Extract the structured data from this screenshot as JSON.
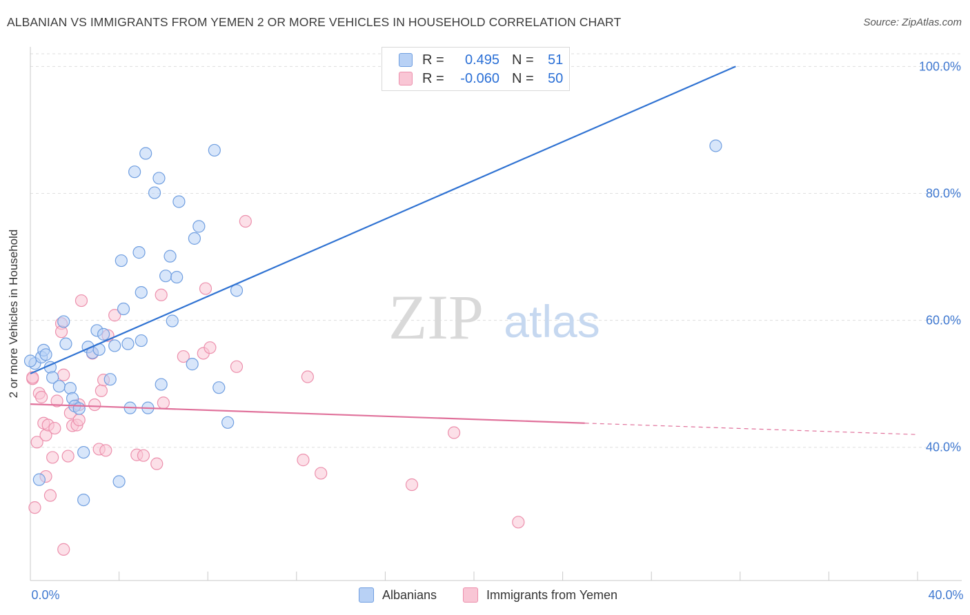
{
  "title": "ALBANIAN VS IMMIGRANTS FROM YEMEN 2 OR MORE VEHICLES IN HOUSEHOLD CORRELATION CHART",
  "source": "Source: ZipAtlas.com",
  "watermark": {
    "zip": "ZIP",
    "atlas": "atlas"
  },
  "legend": {
    "rows": [
      {
        "r_label": "R =",
        "r_value": "0.495",
        "n_label": "N =",
        "n_value": "51"
      },
      {
        "r_label": "R =",
        "r_value": "-0.060",
        "n_label": "N =",
        "n_value": "50"
      }
    ]
  },
  "colors": {
    "blue_fill": "#b8d1f5",
    "blue_stroke": "#6f9ee0",
    "blue_line": "#2f72d2",
    "pink_fill": "#f9c6d5",
    "pink_stroke": "#ec8fac",
    "pink_line": "#e0709a",
    "tick_label": "#3f78d0",
    "grid": "#dedede"
  },
  "chart_data": {
    "type": "scatter",
    "title": "ALBANIAN VS IMMIGRANTS FROM YEMEN 2 OR MORE VEHICLES IN HOUSEHOLD CORRELATION CHART",
    "xlabel": "",
    "ylabel": "2 or more Vehicles in Household",
    "xlim": [
      0,
      40
    ],
    "ylim": [
      19,
      102
    ],
    "x_tick_labels": [
      "0.0%",
      "40.0%"
    ],
    "y_ticks": [
      40,
      60,
      80,
      100
    ],
    "y_tick_labels": [
      "40.0%",
      "60.0%",
      "80.0%",
      "100.0%"
    ],
    "grid": true,
    "legend_position": "bottom",
    "series": [
      {
        "name": "Albanians",
        "r": 0.495,
        "n": 51,
        "trend": {
          "x0": 0.0,
          "y0": 51.6,
          "x1": 31.8,
          "y1": 100.0,
          "solid_until": 31.8
        },
        "points": [
          [
            0.2,
            53.2
          ],
          [
            0.4,
            34.9
          ],
          [
            0.5,
            54.2
          ],
          [
            0.6,
            55.3
          ],
          [
            0.7,
            54.6
          ],
          [
            0.9,
            52.6
          ],
          [
            1.0,
            51.0
          ],
          [
            1.3,
            49.6
          ],
          [
            1.5,
            59.8
          ],
          [
            1.6,
            56.3
          ],
          [
            1.8,
            49.3
          ],
          [
            1.9,
            47.7
          ],
          [
            2.0,
            46.5
          ],
          [
            2.2,
            46.1
          ],
          [
            2.4,
            39.2
          ],
          [
            2.6,
            55.8
          ],
          [
            2.8,
            54.9
          ],
          [
            3.0,
            58.4
          ],
          [
            3.1,
            55.4
          ],
          [
            3.3,
            57.8
          ],
          [
            3.6,
            50.7
          ],
          [
            3.8,
            56.0
          ],
          [
            4.0,
            34.6
          ],
          [
            4.1,
            69.4
          ],
          [
            4.2,
            61.8
          ],
          [
            4.4,
            56.3
          ],
          [
            4.5,
            46.2
          ],
          [
            4.7,
            83.4
          ],
          [
            4.9,
            70.7
          ],
          [
            5.0,
            64.4
          ],
          [
            5.2,
            86.3
          ],
          [
            5.3,
            46.2
          ],
          [
            5.6,
            80.1
          ],
          [
            5.8,
            82.4
          ],
          [
            5.9,
            49.9
          ],
          [
            6.1,
            67.0
          ],
          [
            6.3,
            70.1
          ],
          [
            6.4,
            59.9
          ],
          [
            6.6,
            66.8
          ],
          [
            6.7,
            78.7
          ],
          [
            7.3,
            53.1
          ],
          [
            7.4,
            72.9
          ],
          [
            7.6,
            74.8
          ],
          [
            8.3,
            86.8
          ],
          [
            8.5,
            49.4
          ],
          [
            8.9,
            43.9
          ],
          [
            9.3,
            64.7
          ],
          [
            30.9,
            87.5
          ],
          [
            0.0,
            53.6
          ],
          [
            2.4,
            31.7
          ],
          [
            5.0,
            56.8
          ]
        ]
      },
      {
        "name": "Immigrants from Yemen",
        "r": -0.06,
        "n": 50,
        "trend": {
          "x0": 0.0,
          "y0": 46.8,
          "x1": 40.0,
          "y1": 42.0,
          "solid_until": 25.0
        },
        "points": [
          [
            0.1,
            50.8
          ],
          [
            0.2,
            30.5
          ],
          [
            0.3,
            40.8
          ],
          [
            0.4,
            48.5
          ],
          [
            0.5,
            47.9
          ],
          [
            0.6,
            43.8
          ],
          [
            0.7,
            41.9
          ],
          [
            0.7,
            35.4
          ],
          [
            0.8,
            43.5
          ],
          [
            0.9,
            32.4
          ],
          [
            1.0,
            38.4
          ],
          [
            1.1,
            43.0
          ],
          [
            1.2,
            47.3
          ],
          [
            1.4,
            59.5
          ],
          [
            1.4,
            58.2
          ],
          [
            1.5,
            51.4
          ],
          [
            1.7,
            38.6
          ],
          [
            1.8,
            45.4
          ],
          [
            1.9,
            43.4
          ],
          [
            2.1,
            43.5
          ],
          [
            2.2,
            46.7
          ],
          [
            2.2,
            44.3
          ],
          [
            2.3,
            63.1
          ],
          [
            2.8,
            54.8
          ],
          [
            2.9,
            46.7
          ],
          [
            3.1,
            39.7
          ],
          [
            3.2,
            48.9
          ],
          [
            3.3,
            50.6
          ],
          [
            3.4,
            39.5
          ],
          [
            3.8,
            60.8
          ],
          [
            4.8,
            38.8
          ],
          [
            5.1,
            38.7
          ],
          [
            5.7,
            37.4
          ],
          [
            5.9,
            64.0
          ],
          [
            6.0,
            47.0
          ],
          [
            6.9,
            54.3
          ],
          [
            7.8,
            54.8
          ],
          [
            7.9,
            65.0
          ],
          [
            8.1,
            55.7
          ],
          [
            9.3,
            52.7
          ],
          [
            9.7,
            75.6
          ],
          [
            12.3,
            38.0
          ],
          [
            12.5,
            51.1
          ],
          [
            13.1,
            35.9
          ],
          [
            17.2,
            34.1
          ],
          [
            19.1,
            42.3
          ],
          [
            22.0,
            28.2
          ],
          [
            1.5,
            23.9
          ],
          [
            0.1,
            51.0
          ],
          [
            3.5,
            57.6
          ]
        ]
      }
    ]
  },
  "bottom_legend": [
    "Albanians",
    "Immigrants from Yemen"
  ]
}
